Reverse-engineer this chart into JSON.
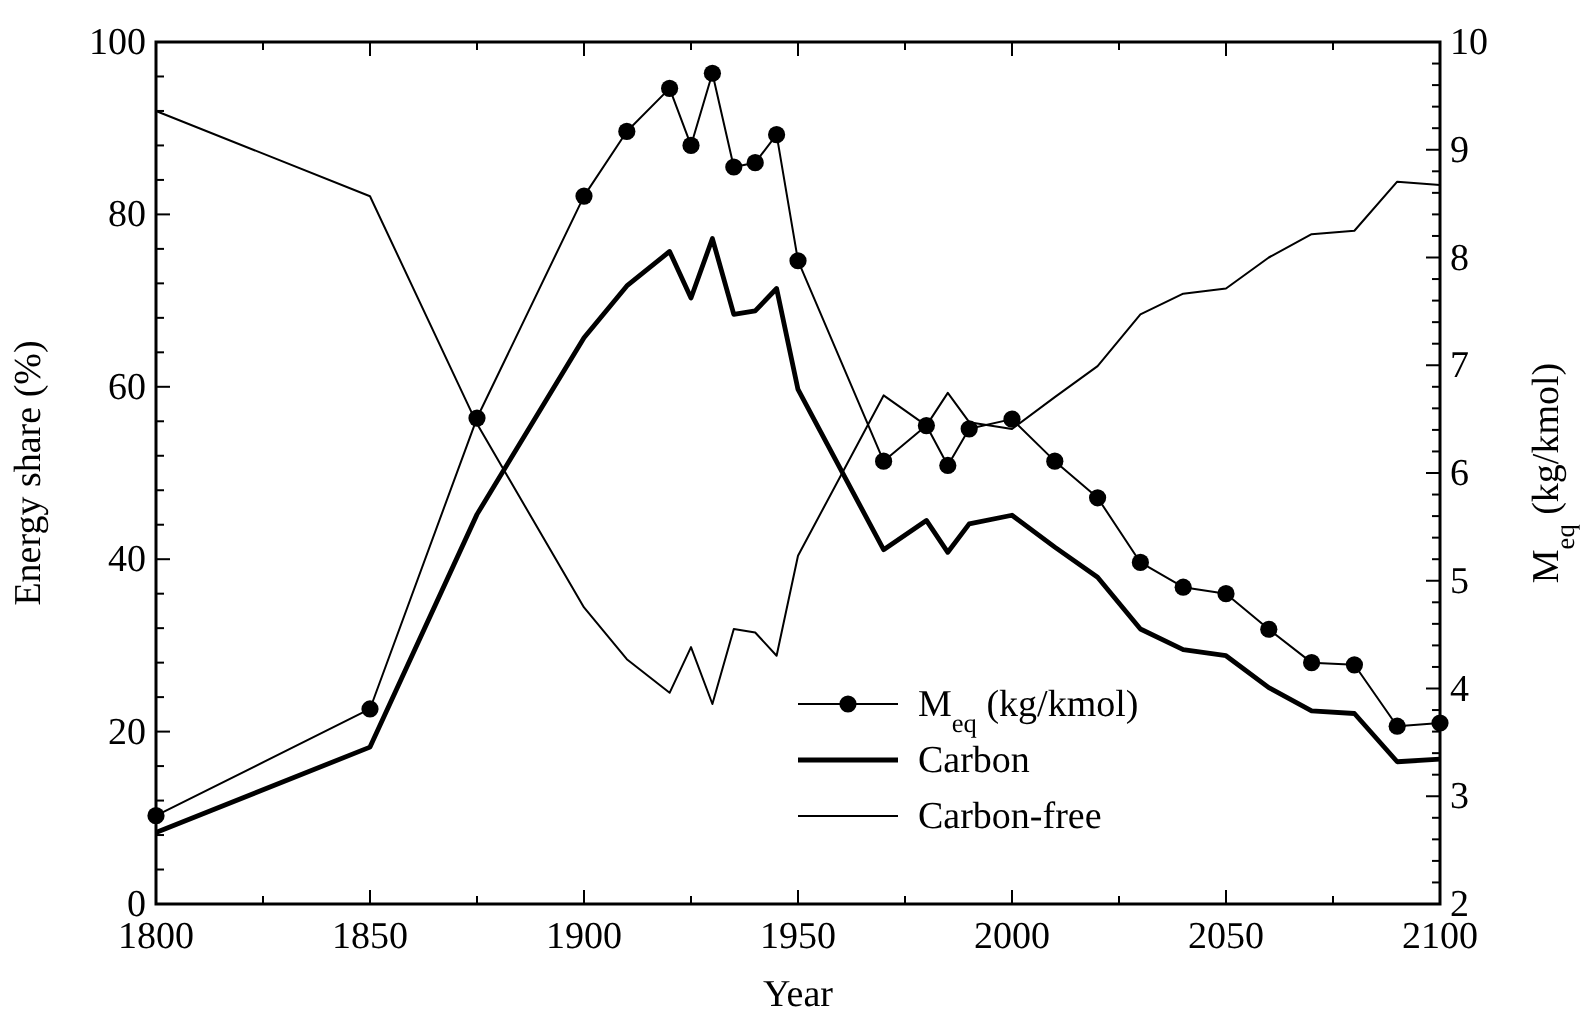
{
  "chart_data": {
    "type": "line",
    "xlabel": "Year",
    "ylabel": "Energy share (%)",
    "y2label": "M$_{eq}$ (kg/kmol)",
    "xlim": [
      1800,
      2100
    ],
    "xticks": [
      1800,
      {
        "value": 1825,
        "label": null
      },
      1850,
      {
        "value": 1875,
        "label": null
      },
      1900,
      {
        "value": 1925,
        "label": null
      },
      1950,
      {
        "value": 1975,
        "label": null
      },
      2000,
      {
        "value": 2025,
        "label": null
      },
      2050,
      {
        "value": 2075,
        "label": null
      },
      2100
    ],
    "ylim": [
      0,
      100
    ],
    "yticks": [
      0,
      {
        "value": 4,
        "label": null
      },
      {
        "value": 8,
        "label": null
      },
      {
        "value": 12,
        "label": null
      },
      {
        "value": 16,
        "label": null
      },
      20,
      {
        "value": 24,
        "label": null
      },
      {
        "value": 28,
        "label": null
      },
      {
        "value": 32,
        "label": null
      },
      {
        "value": 36,
        "label": null
      },
      40,
      {
        "value": 44,
        "label": null
      },
      {
        "value": 48,
        "label": null
      },
      {
        "value": 52,
        "label": null
      },
      {
        "value": 56,
        "label": null
      },
      60,
      {
        "value": 64,
        "label": null
      },
      {
        "value": 68,
        "label": null
      },
      {
        "value": 72,
        "label": null
      },
      {
        "value": 76,
        "label": null
      },
      80,
      {
        "value": 84,
        "label": null
      },
      {
        "value": 88,
        "label": null
      },
      {
        "value": 92,
        "label": null
      },
      {
        "value": 96,
        "label": null
      },
      100
    ],
    "y2lim": [
      2,
      10
    ],
    "y2ticks": [
      2,
      {
        "value": 2.2,
        "label": null
      },
      {
        "value": 2.4,
        "label": null
      },
      {
        "value": 2.6,
        "label": null
      },
      {
        "value": 2.8,
        "label": null
      },
      3,
      {
        "value": 3.2,
        "label": null
      },
      {
        "value": 3.4,
        "label": null
      },
      {
        "value": 3.6,
        "label": null
      },
      {
        "value": 3.8,
        "label": null
      },
      4,
      {
        "value": 4.2,
        "label": null
      },
      {
        "value": 4.4,
        "label": null
      },
      {
        "value": 4.6,
        "label": null
      },
      {
        "value": 4.8,
        "label": null
      },
      5,
      {
        "value": 5.2,
        "label": null
      },
      {
        "value": 5.4,
        "label": null
      },
      {
        "value": 5.6,
        "label": null
      },
      {
        "value": 5.8,
        "label": null
      },
      6,
      {
        "value": 6.2,
        "label": null
      },
      {
        "value": 6.4,
        "label": null
      },
      {
        "value": 6.6,
        "label": null
      },
      {
        "value": 6.8,
        "label": null
      },
      7,
      {
        "value": 7.2,
        "label": null
      },
      {
        "value": 7.4,
        "label": null
      },
      {
        "value": 7.6,
        "label": null
      },
      {
        "value": 7.8,
        "label": null
      },
      8,
      {
        "value": 8.2,
        "label": null
      },
      {
        "value": 8.4,
        "label": null
      },
      {
        "value": 8.6,
        "label": null
      },
      {
        "value": 8.8,
        "label": null
      },
      9,
      {
        "value": 9.2,
        "label": null
      },
      {
        "value": 9.4,
        "label": null
      },
      {
        "value": 9.6,
        "label": null
      },
      {
        "value": 9.8,
        "label": null
      },
      10
    ],
    "x": [
      1800,
      1850,
      1875,
      1900,
      1910,
      1920,
      1925,
      1930,
      1935,
      1940,
      1945,
      1950,
      1970,
      1980,
      1985,
      1990,
      2000,
      2010,
      2020,
      2030,
      2040,
      2050,
      2060,
      2070,
      2080,
      2090,
      2100
    ],
    "legend": "bottom right",
    "grid": false,
    "series": [
      {
        "name": "M$_{eq}$ (kg/kmol)",
        "color": "#000000",
        "axis": "y2",
        "marker": "circle",
        "values": [
          2.82,
          3.81,
          6.51,
          8.57,
          9.17,
          9.57,
          9.04,
          9.71,
          8.84,
          8.88,
          9.14,
          7.97,
          6.11,
          6.44,
          6.07,
          6.41,
          6.5,
          6.11,
          5.77,
          5.17,
          4.94,
          4.88,
          4.55,
          4.24,
          4.22,
          3.65,
          3.68
        ]
      },
      {
        "name": "Carbon",
        "color": "#000000",
        "values": [
          8.3,
          18.2,
          45.2,
          65.7,
          71.7,
          75.7,
          70.3,
          77.2,
          68.4,
          68.8,
          71.4,
          59.7,
          41.1,
          44.5,
          40.8,
          44.1,
          45.1,
          41.4,
          37.9,
          31.9,
          29.5,
          28.8,
          25.1,
          22.4,
          22.1,
          16.5,
          16.8
        ]
      },
      {
        "name": "Carbon-free",
        "color": "#000000",
        "values": [
          92.0,
          82.1,
          55.7,
          34.4,
          28.4,
          24.5,
          29.8,
          23.2,
          31.9,
          31.5,
          28.8,
          40.4,
          59.0,
          55.5,
          59.3,
          55.9,
          55.1,
          58.8,
          62.4,
          68.4,
          70.8,
          71.4,
          75.0,
          77.7,
          78.1,
          83.8,
          83.4
        ]
      }
    ]
  }
}
